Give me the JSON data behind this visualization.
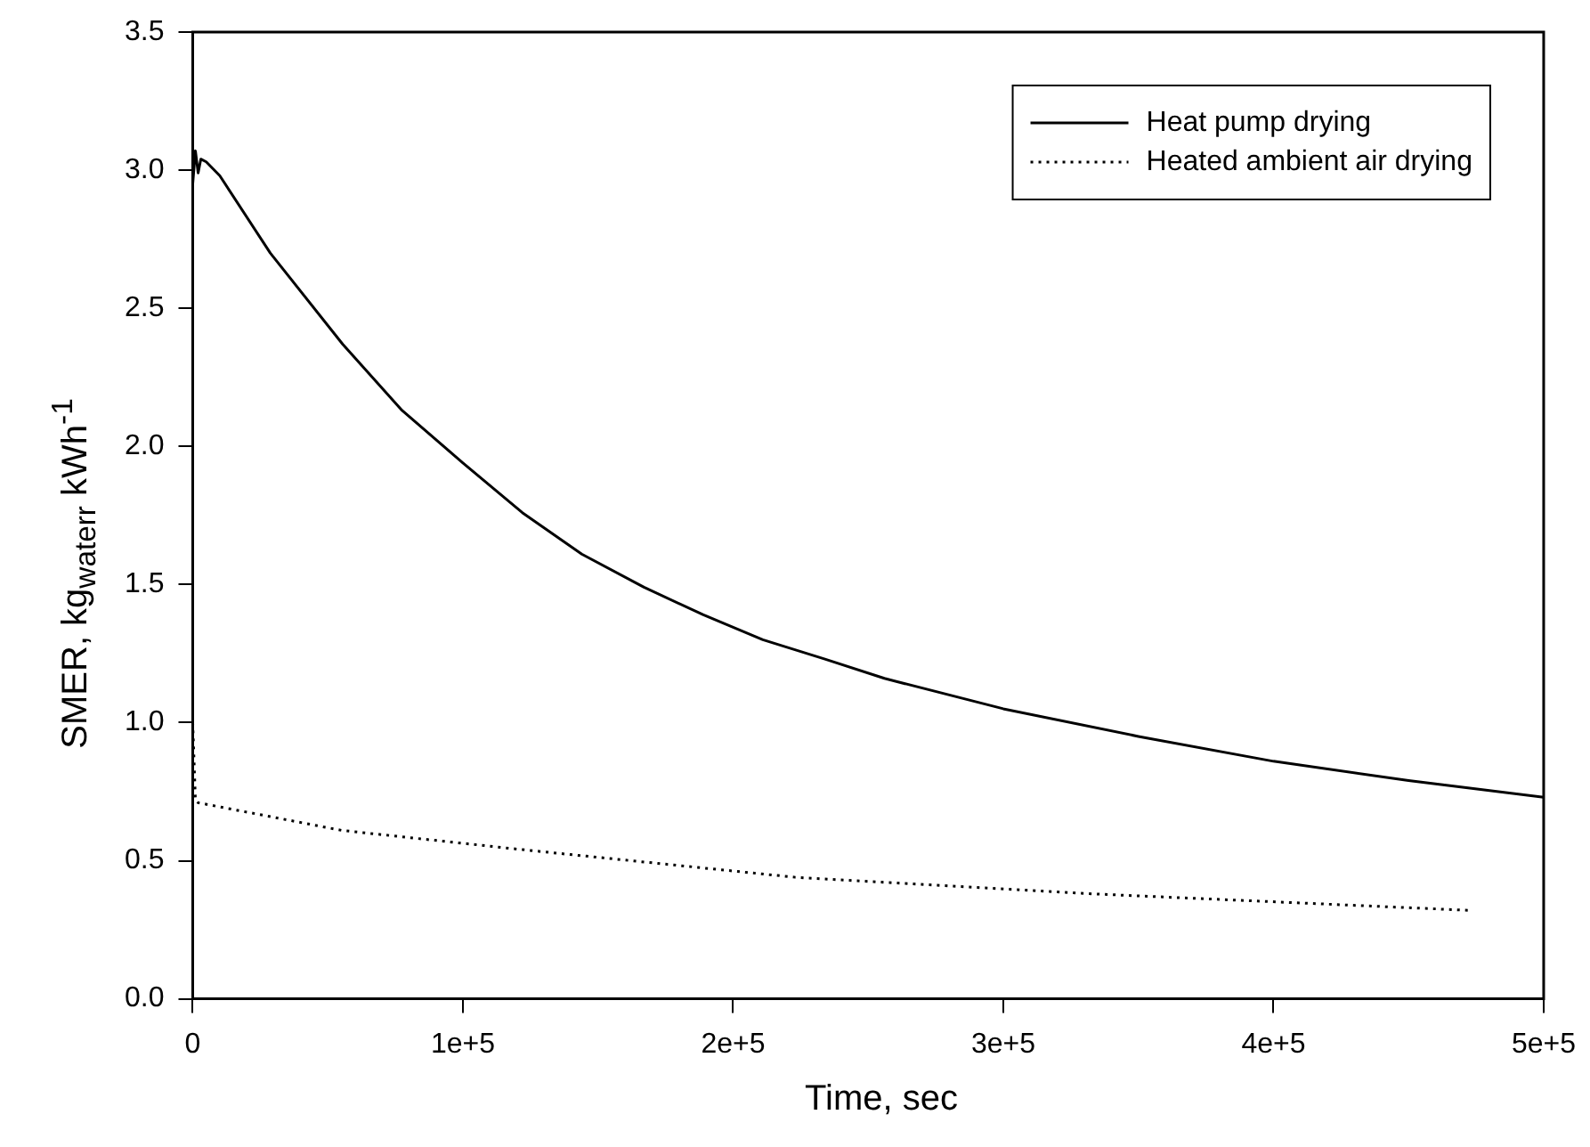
{
  "chart_data": {
    "type": "line",
    "xlabel": "Time, sec",
    "ylabel": "SMER, kg$_{waterr}$ kWh$^{-1}$",
    "xlim": [
      0,
      500000
    ],
    "xticks": [
      {
        "value": 0,
        "label": "0"
      },
      {
        "value": 100000,
        "label": "1e+5"
      },
      {
        "value": 200000,
        "label": "2e+5"
      },
      {
        "value": 300000,
        "label": "3e+5"
      },
      {
        "value": 400000,
        "label": "4e+5"
      },
      {
        "value": 500000,
        "label": "5e+5"
      }
    ],
    "ylim": [
      0,
      3.5
    ],
    "yticks": [
      {
        "value": 0,
        "label": "0.0"
      },
      {
        "value": 0.5,
        "label": "0.5"
      },
      {
        "value": 1,
        "label": "1.0"
      },
      {
        "value": 1.5,
        "label": "1.5"
      },
      {
        "value": 2,
        "label": "2.0"
      },
      {
        "value": 2.5,
        "label": "2.5"
      },
      {
        "value": 3,
        "label": "3.0"
      },
      {
        "value": 3.5,
        "label": "3.5"
      }
    ],
    "grid": false,
    "legend": "top right",
    "marker": "none",
    "series": [
      {
        "name": "Heat pump drying",
        "color": "#000000",
        "line_style": "solid",
        "x": [
          0,
          1000,
          2000,
          3000,
          5000,
          10000,
          28700,
          55500,
          77500,
          100000,
          122000,
          144000,
          167000,
          189000,
          211000,
          234000,
          256000,
          300000,
          350000,
          400000,
          450000,
          500000
        ],
        "values": [
          2.95,
          3.07,
          2.99,
          3.04,
          3.03,
          2.98,
          2.7,
          2.37,
          2.13,
          1.94,
          1.76,
          1.61,
          1.49,
          1.39,
          1.3,
          1.23,
          1.16,
          1.05,
          0.95,
          0.86,
          0.79,
          0.73
        ]
      },
      {
        "name": "Heated ambient air drying",
        "color": "#000000",
        "line_style": "dotted",
        "x": [
          0,
          1000,
          2000,
          55000,
          122000,
          223000,
          333000,
          473000
        ],
        "values": [
          1.0,
          0.72,
          0.71,
          0.61,
          0.54,
          0.44,
          0.38,
          0.32
        ]
      }
    ]
  }
}
